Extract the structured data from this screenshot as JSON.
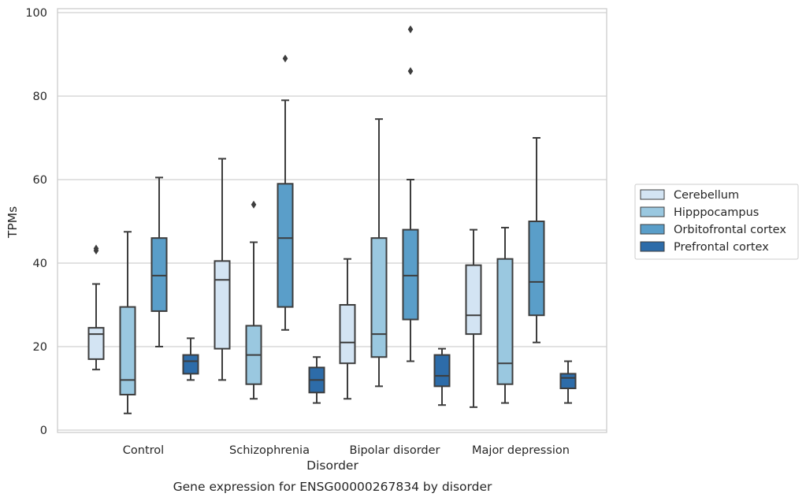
{
  "chart_data": {
    "type": "box",
    "xlabel": "Disorder",
    "ylabel": "TPMs",
    "caption": "Gene expression for ENSG00000267834 by disorder",
    "ylim": [
      0,
      100
    ],
    "yticks": [
      0,
      20,
      40,
      60,
      80,
      100
    ],
    "grid": "horizontal",
    "legend_position": "right",
    "categories": [
      "Control",
      "Schizophrenia",
      "Bipolar disorder",
      "Major depression"
    ],
    "series": [
      {
        "name": "Cerebellum",
        "color": "#d3e4f3",
        "boxes": [
          {
            "min": 14.5,
            "q1": 17,
            "median": 23,
            "q3": 24.5,
            "max": 35,
            "outliers": [
              43,
              43.5
            ]
          },
          {
            "min": 12,
            "q1": 19.5,
            "median": 36,
            "q3": 40.5,
            "max": 65,
            "outliers": []
          },
          {
            "min": 7.5,
            "q1": 16,
            "median": 21,
            "q3": 30,
            "max": 41,
            "outliers": []
          },
          {
            "min": 5.5,
            "q1": 23,
            "median": 27.5,
            "q3": 39.5,
            "max": 48,
            "outliers": []
          }
        ]
      },
      {
        "name": "Hipppocampus",
        "color": "#9ac8e0",
        "boxes": [
          {
            "min": 4,
            "q1": 8.5,
            "median": 12,
            "q3": 29.5,
            "max": 47.5,
            "outliers": []
          },
          {
            "min": 7.5,
            "q1": 11,
            "median": 18,
            "q3": 25,
            "max": 45,
            "outliers": [
              54
            ]
          },
          {
            "min": 10.5,
            "q1": 17.5,
            "median": 23,
            "q3": 46,
            "max": 74.5,
            "outliers": []
          },
          {
            "min": 6.5,
            "q1": 11,
            "median": 16,
            "q3": 41,
            "max": 48.5,
            "outliers": []
          }
        ]
      },
      {
        "name": "Orbitofrontal cortex",
        "color": "#5a9ec9",
        "boxes": [
          {
            "min": 20,
            "q1": 28.5,
            "median": 37,
            "q3": 46,
            "max": 60.5,
            "outliers": []
          },
          {
            "min": 24,
            "q1": 29.5,
            "median": 46,
            "q3": 59,
            "max": 79,
            "outliers": [
              89
            ]
          },
          {
            "min": 16.5,
            "q1": 26.5,
            "median": 37,
            "q3": 48,
            "max": 60,
            "outliers": [
              86,
              96
            ]
          },
          {
            "min": 21,
            "q1": 27.5,
            "median": 35.5,
            "q3": 50,
            "max": 70,
            "outliers": []
          }
        ]
      },
      {
        "name": "Prefrontal cortex",
        "color": "#2d6ca9",
        "boxes": [
          {
            "min": 12,
            "q1": 13.5,
            "median": 16.5,
            "q3": 18,
            "max": 22,
            "outliers": []
          },
          {
            "min": 6.5,
            "q1": 9,
            "median": 12,
            "q3": 15,
            "max": 17.5,
            "outliers": []
          },
          {
            "min": 6,
            "q1": 10.5,
            "median": 13,
            "q3": 18,
            "max": 19.5,
            "outliers": []
          },
          {
            "min": 6.5,
            "q1": 10,
            "median": 12.5,
            "q3": 13.5,
            "max": 16.5,
            "outliers": []
          }
        ]
      }
    ]
  }
}
